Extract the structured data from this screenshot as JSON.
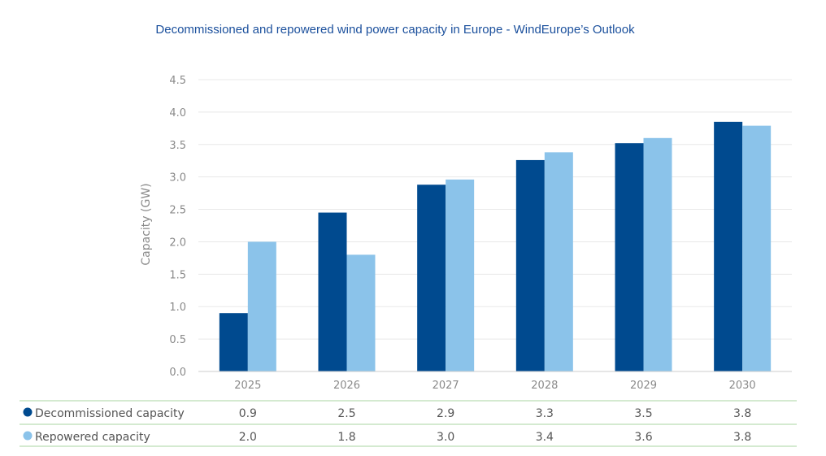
{
  "chart_data": {
    "type": "bar",
    "title": "Decommissioned and repowered wind power capacity in Europe - WindEurope’s Outlook",
    "xlabel": "",
    "ylabel": "Capacity (GW)",
    "categories": [
      "2025",
      "2026",
      "2027",
      "2028",
      "2029",
      "2030"
    ],
    "ylim": [
      0,
      4.5
    ],
    "yticks": [
      "0.0",
      "0.5",
      "1.0",
      "1.5",
      "2.0",
      "2.5",
      "3.0",
      "3.5",
      "4.0",
      "4.5"
    ],
    "grid": true,
    "legend": "data-table-below",
    "series": [
      {
        "name": "Decommissioned capacity",
        "color": "#004a8f",
        "values": [
          0.9,
          2.45,
          2.88,
          3.26,
          3.52,
          3.85
        ],
        "table_values": [
          "0.9",
          "2.5",
          "2.9",
          "3.3",
          "3.5",
          "3.8"
        ]
      },
      {
        "name": "Repowered capacity",
        "color": "#8bc3ea",
        "values": [
          2.0,
          1.8,
          2.96,
          3.38,
          3.6,
          3.79
        ],
        "table_values": [
          "2.0",
          "1.8",
          "3.0",
          "3.4",
          "3.6",
          "3.8"
        ]
      }
    ],
    "colors": {
      "grid": "#e8e8e8",
      "axis": "#cccccc",
      "table_rule": "#a8d5a0",
      "title": "#1a4f9c"
    }
  }
}
